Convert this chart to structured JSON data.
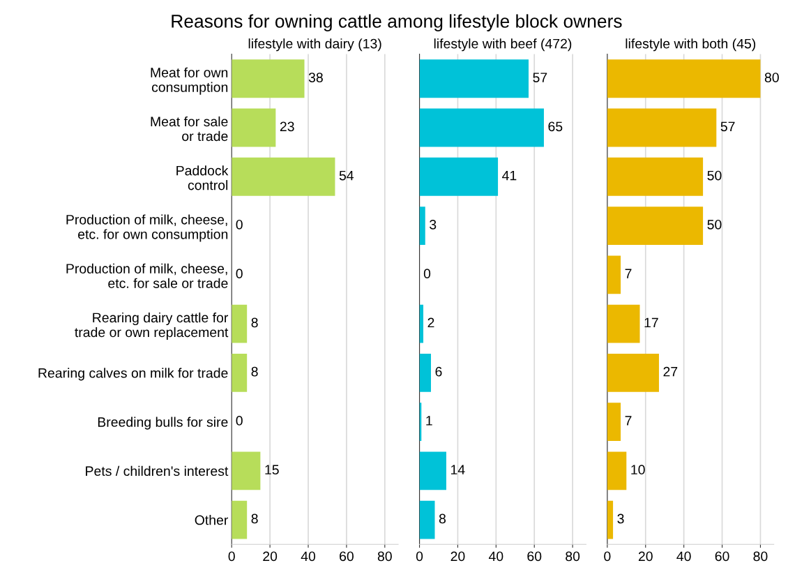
{
  "chart_data": [
    {
      "type": "bar",
      "orientation": "horizontal",
      "title": "lifestyle with dairy (13)",
      "annotations": [
        "Reasons for owning cattle among lifestyle block owners"
      ],
      "categories": [
        "Meat for own\nconsumption",
        "Meat for sale\nor trade",
        "Paddock\ncontrol",
        "Production of milk, cheese,\netc. for own consumption",
        "Production of milk, cheese,\netc. for sale or trade",
        "Rearing dairy cattle for\ntrade or own replacement",
        "Rearing calves on milk for trade",
        "Breeding bulls for sire",
        "Pets / children's interest",
        "Other"
      ],
      "values": [
        38,
        23,
        54,
        0,
        0,
        8,
        8,
        0,
        15,
        8
      ],
      "color": "#b7dd5a",
      "data_labels": true,
      "grid": "x",
      "xlim": [
        0,
        87
      ],
      "xticks": [
        0,
        20,
        40,
        60,
        80
      ]
    },
    {
      "type": "bar",
      "orientation": "horizontal",
      "title": "lifestyle with beef (472)",
      "values": [
        57,
        65,
        41,
        3,
        0,
        2,
        6,
        1,
        14,
        8
      ],
      "color": "#00c2d8",
      "data_labels": true,
      "grid": "x",
      "tick_labels": "x",
      "xlim": [
        0,
        87
      ],
      "xticks": [
        0,
        20,
        40,
        60,
        80
      ]
    },
    {
      "type": "bar",
      "orientation": "horizontal",
      "title": "lifestyle with both (45)",
      "values": [
        80,
        57,
        50,
        50,
        7,
        17,
        27,
        7,
        10,
        3
      ],
      "color": "#ebb800",
      "data_labels": true,
      "grid": "x",
      "tick_labels": "x",
      "xlim": [
        0,
        87
      ],
      "xticks": [
        0,
        20,
        40,
        60,
        80
      ]
    }
  ]
}
